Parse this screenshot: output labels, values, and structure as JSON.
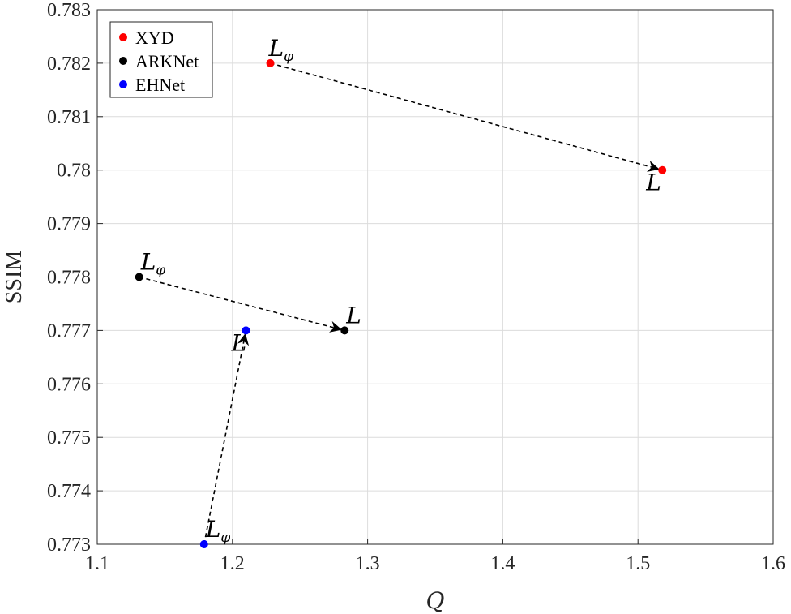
{
  "chart_data": {
    "type": "scatter",
    "xlabel": "Q",
    "ylabel": "SSIM",
    "xlim": [
      1.1,
      1.6
    ],
    "ylim": [
      0.773,
      0.783
    ],
    "xticks": [
      "1.1",
      "1.2",
      "1.3",
      "1.4",
      "1.5",
      "1.6"
    ],
    "yticks": [
      "0.773",
      "0.774",
      "0.775",
      "0.776",
      "0.777",
      "0.778",
      "0.779",
      "0.78",
      "0.781",
      "0.782",
      "0.783"
    ],
    "grid": true,
    "legend_position": "top-left",
    "series": [
      {
        "name": "XYD",
        "color": "#ff0000",
        "points": [
          {
            "x": 1.228,
            "y": 0.782,
            "label": "L",
            "subscript": "φ"
          },
          {
            "x": 1.518,
            "y": 0.78,
            "label": "L",
            "subscript": ""
          }
        ]
      },
      {
        "name": "ARKNet",
        "color": "#000000",
        "points": [
          {
            "x": 1.131,
            "y": 0.778,
            "label": "L",
            "subscript": "φ"
          },
          {
            "x": 1.283,
            "y": 0.777,
            "label": "L",
            "subscript": ""
          }
        ]
      },
      {
        "name": "EHNet",
        "color": "#0000ff",
        "points": [
          {
            "x": 1.179,
            "y": 0.773,
            "label": "L",
            "subscript": "φ"
          },
          {
            "x": 1.21,
            "y": 0.777,
            "label": "L",
            "subscript": ""
          }
        ]
      }
    ],
    "arrows": [
      {
        "from": [
          1.228,
          0.782
        ],
        "to": [
          1.518,
          0.78
        ]
      },
      {
        "from": [
          1.131,
          0.778
        ],
        "to": [
          1.283,
          0.777
        ]
      },
      {
        "from": [
          1.179,
          0.773
        ],
        "to": [
          1.21,
          0.777
        ]
      }
    ]
  }
}
